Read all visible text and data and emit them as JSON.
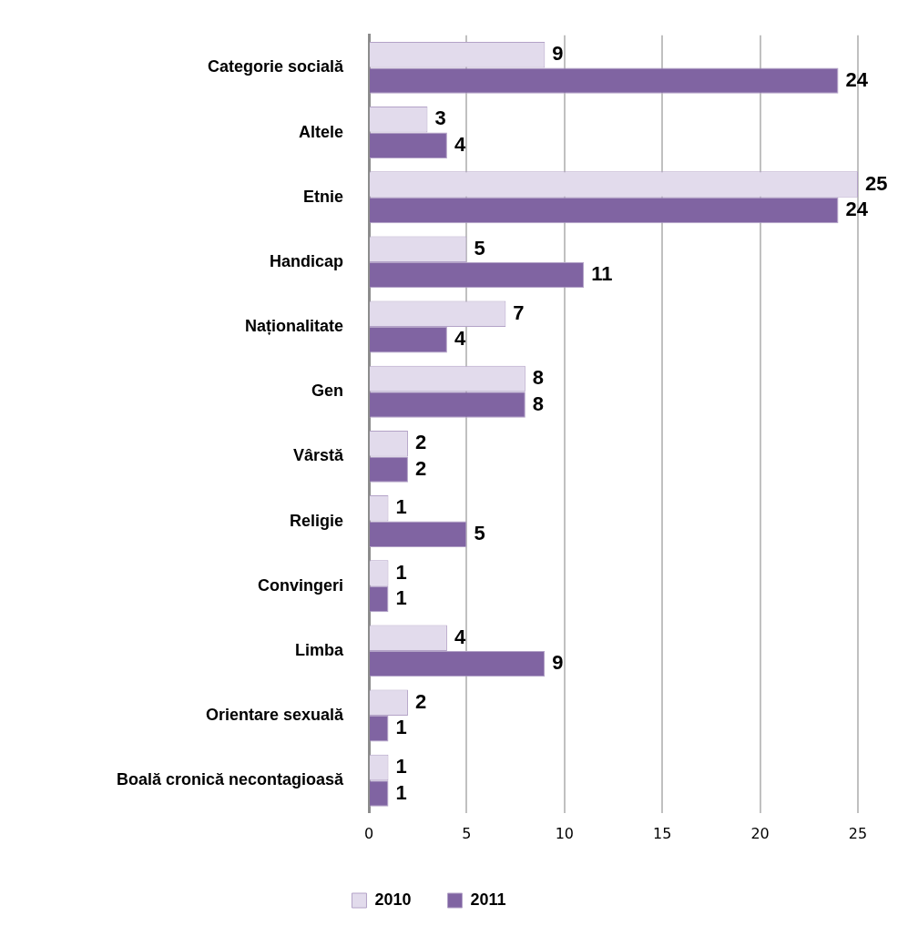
{
  "chart_data": {
    "type": "bar",
    "orientation": "horizontal",
    "categories": [
      "Categorie socială",
      "Altele",
      "Etnie",
      "Handicap",
      "Naționalitate",
      "Gen",
      "Vârstă",
      "Religie",
      "Convingeri",
      "Limba",
      "Orientare sexuală",
      "Boală cronică necontagioasă"
    ],
    "series": [
      {
        "name": "2010",
        "color": "#e2dbec",
        "values": [
          9,
          3,
          25,
          5,
          7,
          8,
          2,
          1,
          1,
          4,
          2,
          1
        ]
      },
      {
        "name": "2011",
        "color": "#8064a2",
        "values": [
          24,
          4,
          24,
          11,
          4,
          8,
          2,
          5,
          1,
          9,
          1,
          1
        ]
      }
    ],
    "xlim": [
      0,
      25
    ],
    "xticks": [
      0,
      5,
      10,
      15,
      20,
      25
    ],
    "grid": "x",
    "legend": "bottom",
    "data_labels": true
  }
}
